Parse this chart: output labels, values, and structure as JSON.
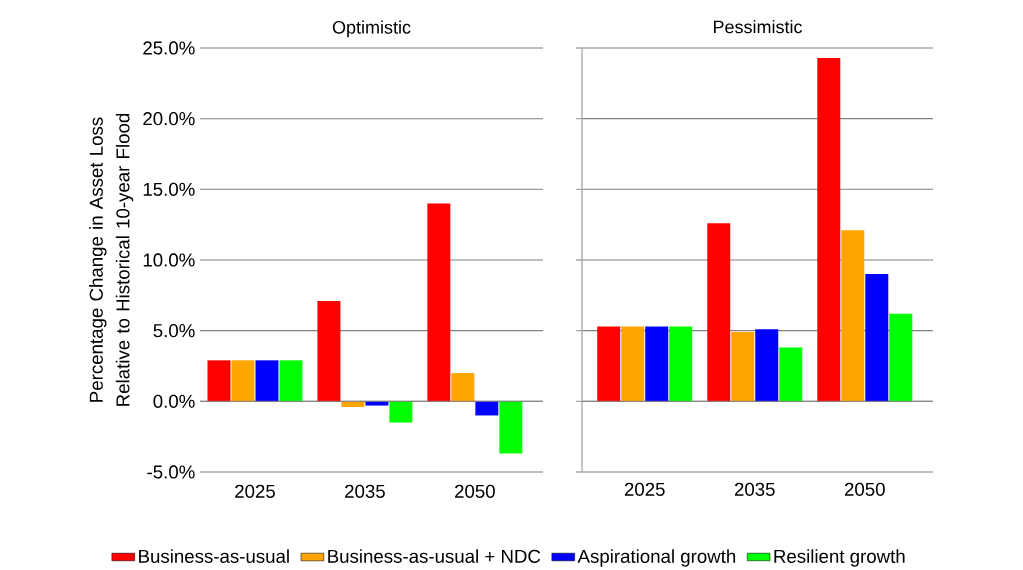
{
  "chart_data": [
    {
      "type": "bar",
      "title": "Optimistic",
      "ylabel": "Percentage Change in Asset Loss Relative to Historical 10-year Flood",
      "categories": [
        "2025",
        "2035",
        "2050"
      ],
      "series": [
        {
          "name": "Business-as-usual",
          "color": "#ff0000",
          "values": [
            2.9,
            7.1,
            14.0
          ]
        },
        {
          "name": "Business-as-usual + NDC",
          "color": "#ffa500",
          "values": [
            2.9,
            -0.4,
            2.0
          ]
        },
        {
          "name": "Aspirational growth",
          "color": "#0000ff",
          "values": [
            2.9,
            -0.3,
            -1.0
          ]
        },
        {
          "name": "Resilient growth",
          "color": "#00ff00",
          "values": [
            2.9,
            -1.5,
            -3.7
          ]
        }
      ],
      "ylim": [
        -5,
        25
      ],
      "yticks": [
        {
          "value": -5,
          "label": "-5.0%"
        },
        {
          "value": 0,
          "label": "0.0%"
        },
        {
          "value": 5,
          "label": "5.0%"
        },
        {
          "value": 10,
          "label": "10.0%"
        },
        {
          "value": 15,
          "label": "15.0%"
        },
        {
          "value": 20,
          "label": "20.0%"
        },
        {
          "value": 25,
          "label": "25.0%"
        }
      ],
      "grid": "y",
      "legend": "bottom"
    },
    {
      "type": "bar",
      "title": "Pessimistic",
      "categories": [
        "2025",
        "2035",
        "2050"
      ],
      "series": [
        {
          "color": "#ff0000",
          "values": [
            5.3,
            12.6,
            24.3
          ]
        },
        {
          "color": "#ffa500",
          "values": [
            5.3,
            4.9,
            12.1
          ]
        },
        {
          "color": "#0000ff",
          "values": [
            5.3,
            5.1,
            9.0
          ]
        },
        {
          "color": "#00ff00",
          "values": [
            5.3,
            3.8,
            6.2
          ]
        }
      ],
      "ylim": [
        -5,
        25
      ],
      "yticks": [
        -5,
        0,
        5,
        10,
        15,
        20,
        25
      ],
      "grid": "y",
      "tick_labels": "x"
    }
  ]
}
